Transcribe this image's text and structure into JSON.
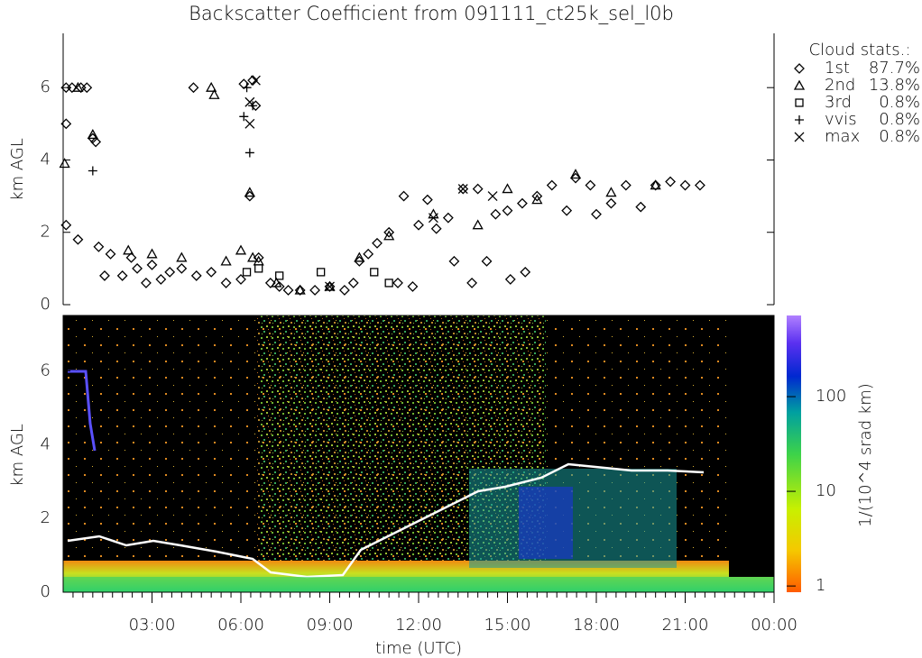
{
  "chart_data": {
    "type": "scatter",
    "title": "Backscatter Coefficient from 091111_ct25k_sel_l0b",
    "x_label": "time (UTC)",
    "y_label": "km AGL",
    "image_y_label": "km AGL",
    "xlim": [
      0,
      24
    ],
    "xticks": [
      {
        "value": 3,
        "label": "03:00"
      },
      {
        "value": 6,
        "label": "06:00"
      },
      {
        "value": 9,
        "label": "09:00"
      },
      {
        "value": 12,
        "label": "12:00"
      },
      {
        "value": 15,
        "label": "15:00"
      },
      {
        "value": 18,
        "label": "18:00"
      },
      {
        "value": 21,
        "label": "21:00"
      },
      {
        "value": 24,
        "label": "00:00"
      }
    ],
    "ylim": [
      0,
      7.5
    ],
    "yticks": [
      0,
      2,
      4,
      6
    ],
    "legend_title": "Cloud stats.:",
    "legend_position": "right",
    "series": [
      {
        "name": "1st",
        "share": "87.7%",
        "marker": "diamond",
        "color": "#000000",
        "x": [
          0.1,
          0.3,
          0.6,
          0.8,
          0.1,
          0.1,
          0.5,
          1.0,
          1.1,
          1.2,
          1.4,
          1.6,
          2.0,
          2.3,
          2.5,
          2.8,
          3.0,
          3.3,
          3.6,
          4.0,
          4.4,
          4.5,
          5.0,
          5.5,
          6.0,
          6.1,
          6.4,
          6.3,
          6.5,
          6.6,
          7.0,
          7.3,
          7.6,
          8.0,
          8.5,
          9.0,
          9.5,
          9.8,
          10.0,
          10.3,
          10.6,
          11.0,
          11.3,
          11.5,
          11.8,
          12.0,
          12.3,
          12.6,
          13.0,
          13.2,
          13.5,
          13.8,
          14.0,
          14.3,
          14.6,
          15.0,
          15.1,
          15.5,
          15.6,
          16.0,
          16.5,
          17.0,
          17.3,
          17.8,
          18.0,
          18.5,
          19.0,
          19.5,
          20.0,
          20.5,
          21.0,
          21.5
        ],
        "y": [
          6.0,
          6.0,
          6.0,
          6.0,
          5.0,
          2.2,
          1.8,
          4.6,
          4.5,
          1.6,
          0.8,
          1.4,
          0.8,
          1.3,
          1.0,
          0.6,
          1.1,
          0.7,
          0.9,
          1.0,
          6.0,
          0.8,
          0.9,
          0.6,
          0.7,
          6.1,
          6.2,
          3.0,
          5.5,
          1.3,
          0.6,
          0.5,
          0.4,
          0.4,
          0.4,
          0.5,
          0.4,
          0.6,
          1.2,
          1.4,
          1.7,
          2.0,
          0.6,
          3.0,
          0.5,
          2.2,
          2.9,
          2.1,
          2.4,
          1.2,
          3.2,
          0.6,
          3.2,
          1.2,
          2.5,
          2.6,
          0.7,
          2.8,
          0.9,
          3.0,
          3.3,
          2.6,
          3.5,
          3.3,
          2.5,
          2.8,
          3.3,
          2.7,
          3.3,
          3.4,
          3.3,
          3.3
        ]
      },
      {
        "name": "2nd",
        "share": "13.8%",
        "marker": "triangle",
        "color": "#000000",
        "x": [
          0.05,
          0.5,
          1.0,
          2.2,
          3.0,
          4.0,
          5.0,
          5.1,
          5.5,
          6.0,
          6.3,
          6.4,
          6.6,
          7.2,
          8.0,
          9.0,
          10.0,
          11.0,
          12.5,
          14.0,
          15.0,
          16.0,
          17.3,
          18.5,
          20.0
        ],
        "y": [
          3.9,
          6.0,
          4.7,
          1.5,
          1.4,
          1.3,
          6.0,
          5.8,
          1.2,
          1.5,
          3.1,
          1.3,
          1.2,
          0.6,
          0.4,
          0.5,
          1.3,
          1.9,
          2.5,
          2.2,
          3.2,
          2.9,
          3.6,
          3.1,
          3.3
        ]
      },
      {
        "name": "3rd",
        "share": "0.8%",
        "marker": "square",
        "color": "#000000",
        "x": [
          6.2,
          6.6,
          7.3,
          8.7,
          10.5,
          11.0
        ],
        "y": [
          0.9,
          1.0,
          0.8,
          0.9,
          0.9,
          0.6
        ]
      },
      {
        "name": "vvis",
        "share": "0.8%",
        "marker": "plus",
        "color": "#000000",
        "x": [
          1.0,
          6.1,
          6.3,
          6.4,
          6.2
        ],
        "y": [
          3.7,
          5.2,
          4.2,
          5.5,
          6.0
        ]
      },
      {
        "name": "max",
        "share": "0.8%",
        "marker": "cross",
        "color": "#000000",
        "x": [
          6.3,
          6.5,
          6.3,
          9.0,
          12.5,
          14.5,
          13.5
        ],
        "y": [
          5.0,
          6.2,
          5.6,
          0.5,
          2.4,
          3.0,
          3.2
        ]
      }
    ],
    "colorbar_label": "1/(10^4 srad km)",
    "colorbar_log": true,
    "clim": [
      0.86,
      720
    ],
    "cticks": [
      1,
      10,
      100
    ]
  }
}
